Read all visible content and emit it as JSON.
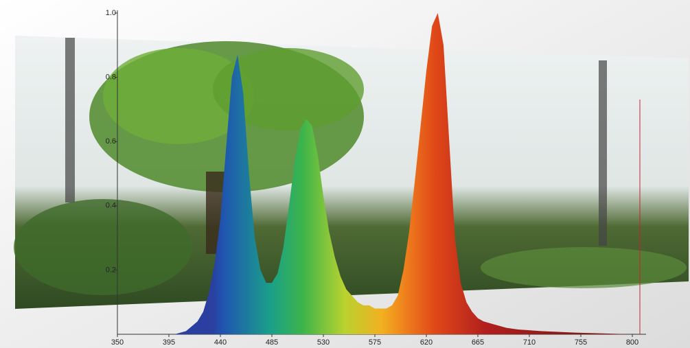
{
  "chart_data": {
    "type": "area",
    "x": [
      400,
      410,
      420,
      425,
      430,
      435,
      440,
      445,
      450,
      455,
      460,
      465,
      470,
      475,
      480,
      485,
      490,
      495,
      500,
      505,
      510,
      515,
      520,
      525,
      530,
      535,
      540,
      545,
      550,
      555,
      560,
      565,
      570,
      575,
      580,
      585,
      590,
      595,
      600,
      605,
      610,
      615,
      620,
      625,
      630,
      635,
      640,
      645,
      650,
      655,
      660,
      665,
      670,
      680,
      690,
      700,
      720,
      750,
      800
    ],
    "values": [
      0,
      0.01,
      0.04,
      0.07,
      0.13,
      0.22,
      0.36,
      0.58,
      0.8,
      0.87,
      0.75,
      0.5,
      0.3,
      0.2,
      0.16,
      0.16,
      0.19,
      0.27,
      0.4,
      0.54,
      0.64,
      0.67,
      0.65,
      0.56,
      0.43,
      0.32,
      0.24,
      0.18,
      0.14,
      0.12,
      0.1,
      0.09,
      0.09,
      0.08,
      0.08,
      0.08,
      0.09,
      0.12,
      0.2,
      0.32,
      0.48,
      0.65,
      0.82,
      0.96,
      1.0,
      0.9,
      0.6,
      0.3,
      0.16,
      0.1,
      0.07,
      0.05,
      0.04,
      0.03,
      0.02,
      0.015,
      0.01,
      0.005,
      0
    ],
    "xlim": [
      350,
      812
    ],
    "xticks": [
      350,
      395,
      440,
      485,
      530,
      575,
      620,
      665,
      710,
      755,
      800
    ],
    "ylim": [
      0,
      1
    ],
    "yticks": [
      0.2,
      0.4,
      0.6,
      0.8,
      {
        "value": 1,
        "label": "1.0"
      }
    ]
  }
}
